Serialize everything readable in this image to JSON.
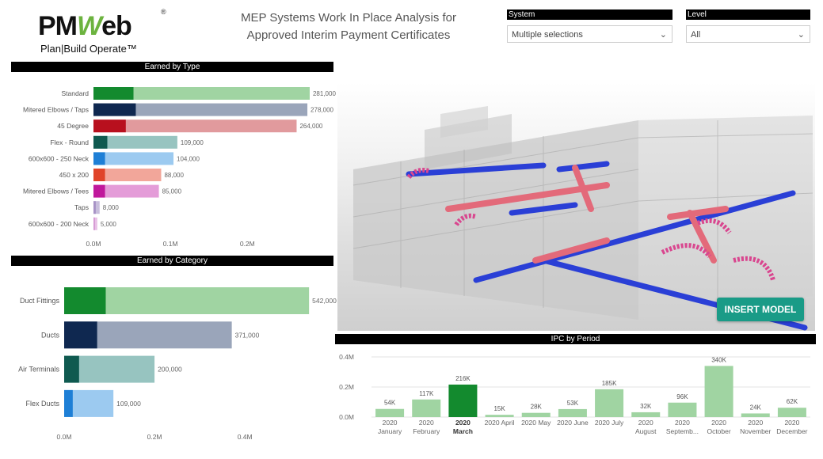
{
  "logo": {
    "brand_left": "PM",
    "brand_w": "W",
    "brand_right": "eb",
    "reg": "®",
    "tagline": "Plan|Build Operate™"
  },
  "title": {
    "line1": "MEP Systems Work In Place Analysis for",
    "line2": "Approved Interim Payment Certificates"
  },
  "slicers": {
    "system": {
      "label": "System",
      "value": "Multiple selections"
    },
    "level": {
      "label": "Level",
      "value": "All"
    }
  },
  "model": {
    "button_label": "INSERT MODEL",
    "icon": "3d-model-icon"
  },
  "colors": {
    "header_bg": "#000000",
    "accent": "#1a9b87",
    "highlight": "#138a2e",
    "bar_default": "#a0d4a2"
  },
  "chart_data": [
    {
      "type": "bar",
      "orientation": "horizontal",
      "title": "Earned by Type",
      "categories": [
        "Standard",
        "Mitered Elbows / Taps",
        "45 Degree",
        "Flex - Round",
        "600x600 - 250 Neck",
        "450 x 200",
        "Mitered Elbows / Tees",
        "Taps",
        "600x600 - 200 Neck"
      ],
      "series": [
        {
          "values": [
            281000,
            278000,
            264000,
            109000,
            104000,
            88000,
            85000,
            8000,
            5000
          ]
        }
      ],
      "earned_portion": [
        52000,
        55000,
        42000,
        18000,
        15000,
        15000,
        15000,
        3000,
        2000
      ],
      "data_labels": [
        "281,000",
        "278,000",
        "264,000",
        "109,000",
        "104,000",
        "88,000",
        "85,000",
        "8,000",
        "5,000"
      ],
      "colors_dark": [
        "#138a2e",
        "#0f2850",
        "#b8101e",
        "#0f5a50",
        "#1e7fd6",
        "#e0442a",
        "#c0189c",
        "#a792c6",
        "#d69ad4"
      ],
      "colors_light": [
        "#a0d4a2",
        "#9aa5ba",
        "#e19a9d",
        "#97c4c0",
        "#9ccaf0",
        "#f2a69a",
        "#e49cd8",
        "#c8bedc",
        "#e8c0e6"
      ],
      "x_ticks": [
        "0.0M",
        "0.1M",
        "0.2M"
      ],
      "xlim": [
        0,
        280000
      ]
    },
    {
      "type": "bar",
      "orientation": "horizontal",
      "title": "Earned by Category",
      "categories": [
        "Duct Fittings",
        "Ducts",
        "Air Terminals",
        "Flex Ducts"
      ],
      "series": [
        {
          "values": [
            542000,
            371000,
            200000,
            109000
          ]
        }
      ],
      "earned_portion": [
        92000,
        73000,
        33000,
        19000
      ],
      "data_labels": [
        "542,000",
        "371,000",
        "200,000",
        "109,000"
      ],
      "colors_dark": [
        "#138a2e",
        "#0f2850",
        "#0f5a50",
        "#1e7fd6"
      ],
      "colors_light": [
        "#a0d4a2",
        "#9aa5ba",
        "#97c4c0",
        "#9ccaf0"
      ],
      "x_ticks": [
        "0.0M",
        "0.2M",
        "0.4M"
      ],
      "xlim": [
        0,
        540000
      ]
    },
    {
      "type": "bar",
      "orientation": "vertical",
      "title": "IPC by Period",
      "categories": [
        [
          "2020",
          "January"
        ],
        [
          "2020",
          "February"
        ],
        [
          "2020",
          "March"
        ],
        [
          "2020 April"
        ],
        [
          "2020 May"
        ],
        [
          "2020 June"
        ],
        [
          "2020 July"
        ],
        [
          "2020",
          "August"
        ],
        [
          "2020",
          "Septemb..."
        ],
        [
          "2020",
          "October"
        ],
        [
          "2020",
          "November"
        ],
        [
          "2020",
          "December"
        ]
      ],
      "series": [
        {
          "values": [
            54000,
            117000,
            216000,
            15000,
            28000,
            53000,
            185000,
            32000,
            96000,
            340000,
            24000,
            62000
          ]
        }
      ],
      "data_labels": [
        "54K",
        "117K",
        "216K",
        "15K",
        "28K",
        "53K",
        "185K",
        "32K",
        "96K",
        "340K",
        "24K",
        "62K"
      ],
      "highlight_index": 2,
      "y_ticks": [
        "0.0M",
        "0.2M",
        "0.4M"
      ],
      "ylim": [
        0,
        400000
      ]
    }
  ]
}
